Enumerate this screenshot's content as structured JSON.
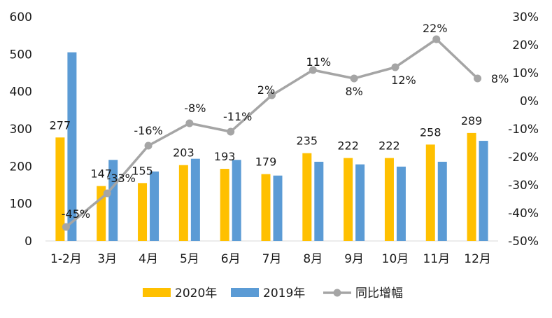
{
  "chart_data": {
    "type": "bar",
    "categories": [
      "1-2月",
      "3月",
      "4月",
      "5月",
      "6月",
      "7月",
      "8月",
      "9月",
      "10月",
      "11月",
      "12月"
    ],
    "series": [
      {
        "name": "2020年",
        "type": "bar",
        "axis": "left",
        "color": "#FFC000",
        "values": [
          277,
          147,
          155,
          203,
          193,
          179,
          235,
          222,
          222,
          258,
          289
        ],
        "labels": [
          "277",
          "147",
          "155",
          "203",
          "193",
          "179",
          "235",
          "222",
          "222",
          "258",
          "289"
        ]
      },
      {
        "name": "2019年",
        "type": "bar",
        "axis": "left",
        "color": "#5B9BD5",
        "values": [
          505,
          217,
          186,
          220,
          217,
          175,
          212,
          205,
          199,
          212,
          268
        ]
      },
      {
        "name": "同比增幅",
        "type": "line",
        "axis": "right",
        "color": "#A5A5A5",
        "values": [
          -45,
          -33,
          -16,
          -8,
          -11,
          2,
          11,
          8,
          12,
          22,
          8
        ],
        "labels": [
          "-45%",
          "-33%",
          "-16%",
          "-8%",
          "-11%",
          "2%",
          "11%",
          "8%",
          "12%",
          "22%",
          "8%"
        ]
      }
    ],
    "y_left": {
      "ylim": [
        0,
        600
      ],
      "ticks": [
        "0",
        "100",
        "200",
        "300",
        "400",
        "500",
        "600"
      ]
    },
    "y_right": {
      "ylim": [
        -50,
        30
      ],
      "ticks": [
        "-50%",
        "-40%",
        "-30%",
        "-20%",
        "-10%",
        "0%",
        "10%",
        "20%",
        "30%"
      ]
    },
    "legend": {
      "position": "bottom"
    },
    "grid": false,
    "title": "",
    "xlabel": "",
    "ylabel": ""
  }
}
